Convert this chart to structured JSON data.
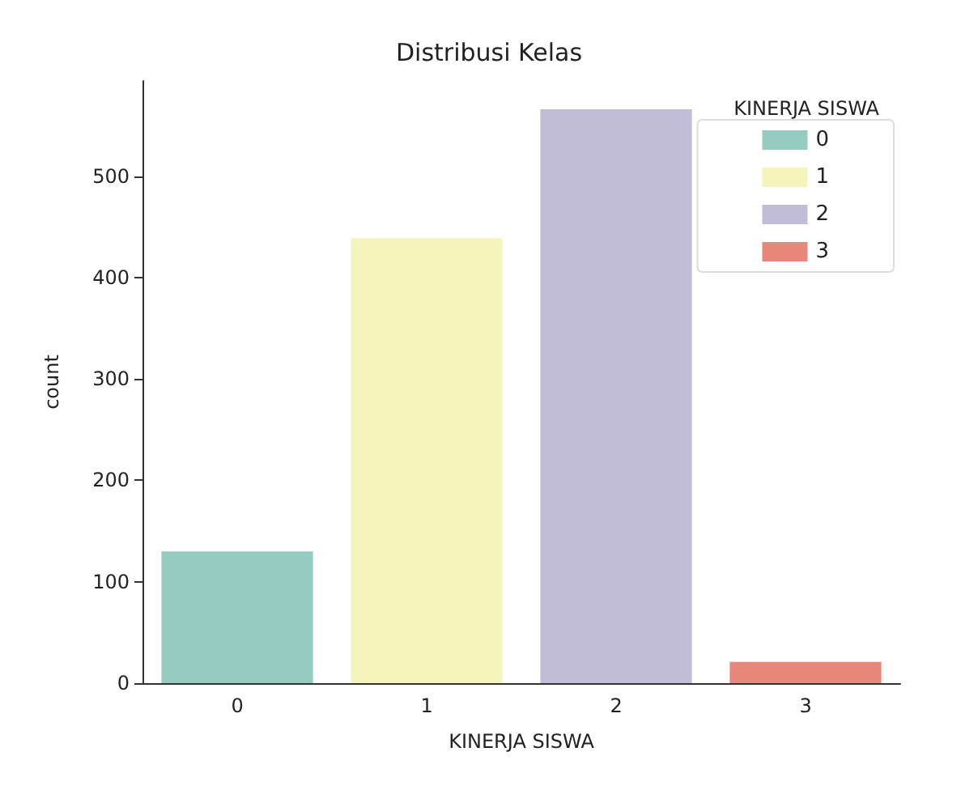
{
  "chart_data": {
    "type": "bar",
    "title": "Distribusi Kelas",
    "xlabel": "KINERJA SISWA",
    "ylabel": "count",
    "legend_title": "KINERJA SISWA",
    "categories": [
      "0",
      "1",
      "2",
      "3"
    ],
    "series": [
      {
        "name": "0",
        "color": "#96cbc1",
        "values": [
          130,
          null,
          null,
          null
        ]
      },
      {
        "name": "1",
        "color": "#f4f4bb",
        "values": [
          null,
          439,
          null,
          null
        ]
      },
      {
        "name": "2",
        "color": "#c1bdd8",
        "values": [
          null,
          null,
          566,
          null
        ]
      },
      {
        "name": "3",
        "color": "#e8887a",
        "values": [
          null,
          null,
          null,
          21
        ]
      }
    ],
    "stacked": true,
    "ylim": [
      0,
      594
    ],
    "yticks": [
      0,
      100,
      200,
      300,
      400,
      500
    ],
    "grid": false,
    "legend": "top right"
  }
}
